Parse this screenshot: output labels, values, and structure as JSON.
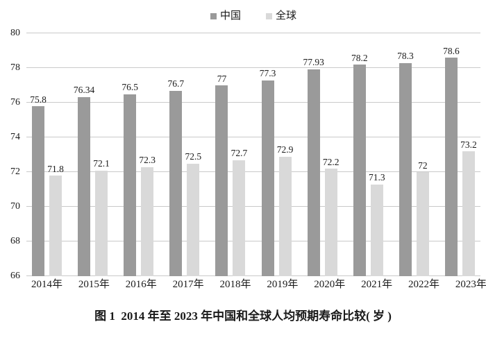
{
  "figure": {
    "caption": "图 1  2014 年至 2023 年中国和全球人均预期寿命比较( 岁 )"
  },
  "chart_data": {
    "type": "bar",
    "title": "",
    "xlabel": "",
    "ylabel": "",
    "categories": [
      "2014年",
      "2015年",
      "2016年",
      "2017年",
      "2018年",
      "2019年",
      "2020年",
      "2021年",
      "2022年",
      "2023年"
    ],
    "series": [
      {
        "key": "china",
        "name": "中国",
        "color": "#9a9a9a",
        "values": [
          75.8,
          76.34,
          76.5,
          76.7,
          77,
          77.3,
          77.93,
          78.2,
          78.3,
          78.6
        ],
        "labels": [
          "75.8",
          "76.34",
          "76.5",
          "76.7",
          "77",
          "77.3",
          "77.93",
          "78.2",
          "78.3",
          "78.6"
        ]
      },
      {
        "key": "global",
        "name": "全球",
        "color": "#d9d9d9",
        "values": [
          71.8,
          72.1,
          72.3,
          72.5,
          72.7,
          72.9,
          72.2,
          71.3,
          72,
          73.2
        ],
        "labels": [
          "71.8",
          "72.1",
          "72.3",
          "72.5",
          "72.7",
          "72.9",
          "72.2",
          "71.3",
          "72",
          "73.2"
        ]
      }
    ],
    "ylim": [
      66,
      80
    ],
    "yticks": [
      66,
      68,
      70,
      72,
      74,
      76,
      78,
      80
    ],
    "grid": true,
    "legend_position": "top-center",
    "gridline_color": "#c9c9c9",
    "background_color": "#ffffff",
    "text_color": "#1a1a1a"
  }
}
